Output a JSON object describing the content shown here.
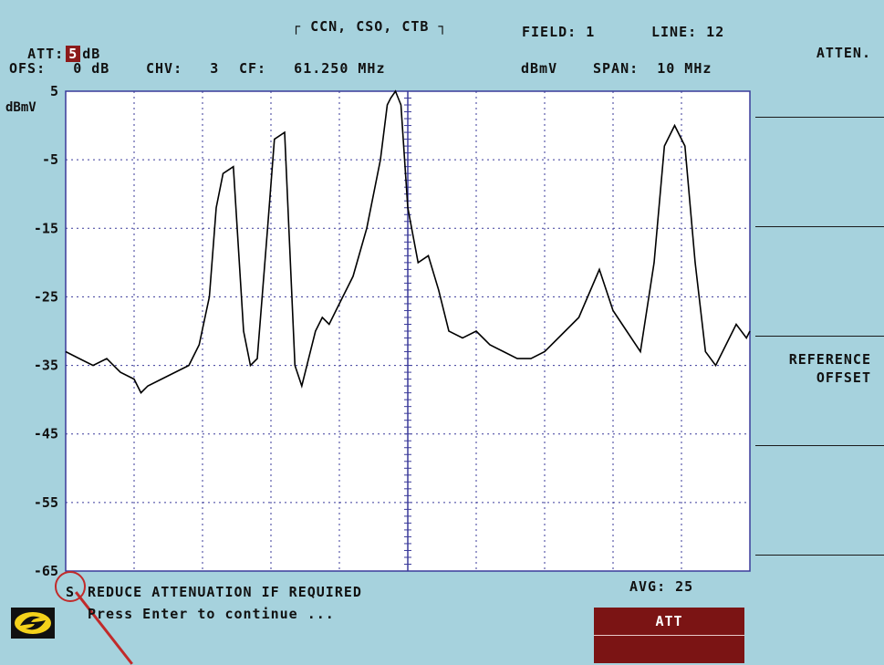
{
  "header": {
    "mode_title": "CCN, CSO, CTB",
    "att_label": "ATT:",
    "att_value": "5",
    "att_unit": "dB",
    "field": "FIELD: 1",
    "line": "LINE: 12",
    "ofs": "OFS:   0 dB",
    "chv": "CHV:   3",
    "cf": "CF:   61.250 MHz",
    "unit": "dBmV",
    "span": "SPAN:  10 MHz"
  },
  "softkeys": {
    "atten": "ATTEN.",
    "reference_offset_line1": "REFERENCE",
    "reference_offset_line2": "OFFSET"
  },
  "footer": {
    "status_letter": "S",
    "message": "REDUCE ATTENUATION IF REQUIRED",
    "prompt": "Press Enter to continue ...",
    "avg": "AVG: 25",
    "att_softkey": "ATT"
  },
  "colors": {
    "background": "#a6d2dd",
    "plot_background": "#ffffff",
    "grid": "#3a3a9a",
    "trace": "#000000",
    "accent": "#8c1a1a",
    "annotation": "#c12a2a"
  },
  "chart_data": {
    "type": "line",
    "title": "CCN, CSO, CTB",
    "xlabel": "",
    "ylabel": "dBmV",
    "ylim": [
      -65,
      5
    ],
    "xlim": [
      0,
      10
    ],
    "yticks": [
      "5",
      "-5",
      "-15",
      "-25",
      "-35",
      "-45",
      "-55",
      "-65"
    ],
    "ytick_values": [
      5,
      -5,
      -15,
      -25,
      -35,
      -45,
      -55,
      -65
    ],
    "ytick_unit_label": "dBmV",
    "grid": true,
    "series": [
      {
        "values_x": [
          0.0,
          0.2,
          0.4,
          0.6,
          0.8,
          1.0,
          1.1,
          1.2,
          1.4,
          1.6,
          1.8,
          1.95,
          2.1,
          2.2,
          2.3,
          2.45,
          2.6,
          2.7,
          2.8,
          2.95,
          3.05,
          3.2,
          3.35,
          3.45,
          3.55,
          3.65,
          3.75,
          3.85,
          4.0,
          4.2,
          4.4,
          4.6,
          4.7,
          4.75,
          4.82,
          4.9,
          5.0,
          5.15,
          5.3,
          5.45,
          5.6,
          5.8,
          6.0,
          6.2,
          6.4,
          6.6,
          6.8,
          7.0,
          7.2,
          7.5,
          7.8,
          8.0,
          8.2,
          8.4,
          8.6,
          8.75,
          8.9,
          9.05,
          9.2,
          9.35,
          9.5,
          9.65,
          9.8,
          9.95,
          10.0
        ],
        "values_y": [
          -33,
          -34,
          -35,
          -34,
          -36,
          -37,
          -39,
          -38,
          -37,
          -36,
          -35,
          -32,
          -25,
          -12,
          -7,
          -6,
          -30,
          -35,
          -34,
          -15,
          -2,
          -1,
          -35,
          -38,
          -34,
          -30,
          -28,
          -29,
          -26,
          -22,
          -15,
          -5,
          3,
          4,
          5,
          3,
          -12,
          -20,
          -19,
          -24,
          -30,
          -31,
          -30,
          -32,
          -33,
          -34,
          -34,
          -33,
          -31,
          -28,
          -21,
          -27,
          -30,
          -33,
          -20,
          -3,
          0,
          -3,
          -20,
          -33,
          -35,
          -32,
          -29,
          -31,
          -30
        ]
      }
    ]
  }
}
